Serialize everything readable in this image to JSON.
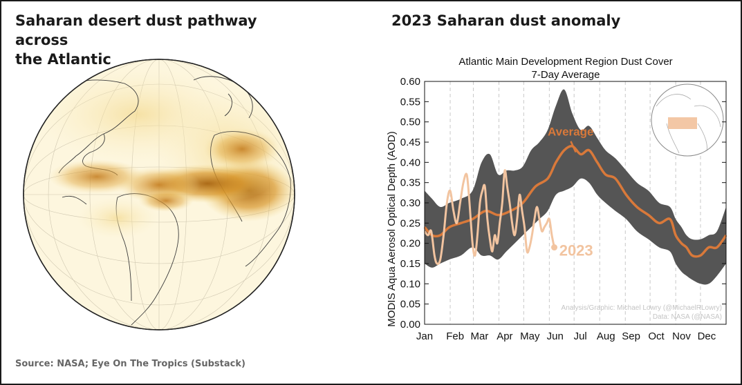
{
  "left_panel": {
    "title": "Saharan desert dust pathway across the Atlantic",
    "title_line1": "Saharan desert dust pathway across",
    "title_line2": "the Atlantic",
    "source": "Source: NASA; Eye On The Tropics (Substack)"
  },
  "right_panel": {
    "title": "2023 Saharan dust anomaly"
  },
  "colors": {
    "band": "#555555",
    "average": "#d9793a",
    "year2023": "#f2c4a0",
    "dust_dark": "#a8640f",
    "dust_mid": "#d8962a",
    "ocean": "#fdf7e3"
  },
  "chart_data": {
    "type": "line",
    "title": "Atlantic Main Development Region Dust Cover",
    "subtitle": "7-Day Average",
    "ylabel": "MODIS Aqua Aerosol Optical Depth (AOD)",
    "xlabel": "",
    "ylim": [
      0,
      0.6
    ],
    "yticks": [
      "0.00",
      "0.05",
      "0.10",
      "0.15",
      "0.20",
      "0.25",
      "0.30",
      "0.35",
      "0.40",
      "0.45",
      "0.50",
      "0.55",
      "0.60"
    ],
    "months": [
      "Jan",
      "Feb",
      "Mar",
      "Apr",
      "May",
      "Jun",
      "Jul",
      "Aug",
      "Sep",
      "Oct",
      "Nov",
      "Dec"
    ],
    "xlim_days": [
      1,
      366
    ],
    "grid": "dashed vertical lines at month boundaries",
    "series": [
      {
        "name": "Average",
        "x": [
          1,
          10,
          20,
          31,
          45,
          59,
          75,
          90,
          105,
          120,
          135,
          150,
          160,
          170,
          180,
          190,
          200,
          210,
          220,
          232,
          245,
          258,
          272,
          285,
          298,
          305,
          312,
          318,
          325,
          335,
          345,
          355,
          366
        ],
        "y": [
          0.24,
          0.22,
          0.22,
          0.24,
          0.25,
          0.26,
          0.28,
          0.27,
          0.28,
          0.3,
          0.34,
          0.36,
          0.4,
          0.43,
          0.44,
          0.42,
          0.43,
          0.4,
          0.37,
          0.36,
          0.32,
          0.29,
          0.27,
          0.25,
          0.26,
          0.22,
          0.2,
          0.19,
          0.17,
          0.17,
          0.19,
          0.19,
          0.22
        ]
      },
      {
        "name": "2023",
        "x": [
          1,
          5,
          9,
          13,
          16,
          20,
          24,
          28,
          32,
          36,
          40,
          44,
          48,
          52,
          55,
          59,
          62,
          65,
          68,
          71,
          74,
          77,
          80,
          83,
          86,
          89,
          92,
          95,
          98,
          101,
          104,
          107,
          110,
          113,
          116,
          119,
          122,
          125,
          128,
          131,
          134,
          137,
          140,
          143,
          146,
          149,
          152,
          155,
          158
        ],
        "y": [
          0.23,
          0.22,
          0.23,
          0.17,
          0.15,
          0.16,
          0.22,
          0.3,
          0.33,
          0.28,
          0.25,
          0.3,
          0.35,
          0.37,
          0.31,
          0.2,
          0.17,
          0.22,
          0.3,
          0.33,
          0.34,
          0.26,
          0.21,
          0.18,
          0.22,
          0.2,
          0.25,
          0.3,
          0.38,
          0.34,
          0.3,
          0.25,
          0.22,
          0.26,
          0.32,
          0.28,
          0.24,
          0.18,
          0.19,
          0.22,
          0.26,
          0.29,
          0.26,
          0.23,
          0.24,
          0.25,
          0.26,
          0.22,
          0.19
        ]
      }
    ],
    "band": {
      "name": "range",
      "x": [
        1,
        10,
        20,
        31,
        45,
        59,
        70,
        80,
        90,
        100,
        110,
        120,
        130,
        140,
        150,
        160,
        170,
        180,
        190,
        200,
        210,
        220,
        232,
        245,
        258,
        272,
        285,
        298,
        305,
        312,
        318,
        325,
        335,
        345,
        355,
        366
      ],
      "upper": [
        0.33,
        0.31,
        0.29,
        0.3,
        0.31,
        0.33,
        0.4,
        0.42,
        0.37,
        0.38,
        0.38,
        0.39,
        0.43,
        0.45,
        0.48,
        0.54,
        0.58,
        0.52,
        0.48,
        0.49,
        0.46,
        0.43,
        0.41,
        0.38,
        0.35,
        0.33,
        0.3,
        0.29,
        0.26,
        0.24,
        0.22,
        0.21,
        0.21,
        0.22,
        0.23,
        0.29
      ],
      "lower": [
        0.15,
        0.14,
        0.15,
        0.16,
        0.17,
        0.19,
        0.17,
        0.17,
        0.16,
        0.18,
        0.2,
        0.22,
        0.24,
        0.26,
        0.28,
        0.32,
        0.33,
        0.34,
        0.36,
        0.35,
        0.32,
        0.3,
        0.28,
        0.26,
        0.23,
        0.21,
        0.19,
        0.18,
        0.15,
        0.13,
        0.12,
        0.11,
        0.1,
        0.1,
        0.12,
        0.15
      ]
    },
    "annotations": {
      "average_label": "Average",
      "year_label": "2023",
      "credit_line1": "Analysis/Graphic: Michael Lowry (@MichaelRLowry)",
      "credit_line2": "Data: NASA (@NASA)"
    }
  }
}
